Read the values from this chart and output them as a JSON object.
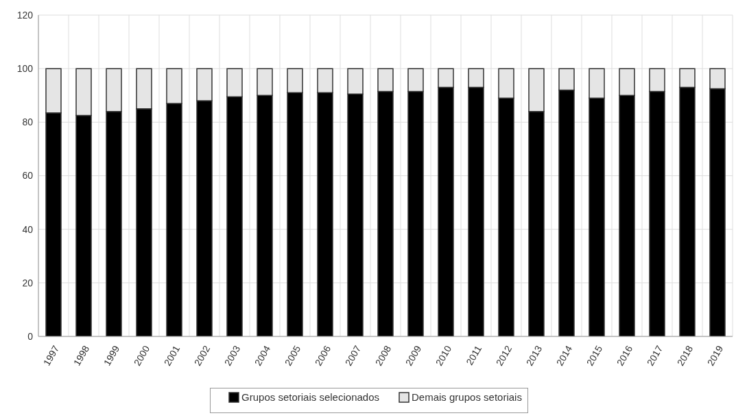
{
  "chart_data": {
    "type": "bar",
    "stacked": true,
    "categories": [
      "1997",
      "1998",
      "1999",
      "2000",
      "2001",
      "2002",
      "2003",
      "2004",
      "2005",
      "2006",
      "2007",
      "2008",
      "2009",
      "2010",
      "2011",
      "2012",
      "2013",
      "2014",
      "2015",
      "2016",
      "2017",
      "2018",
      "2019"
    ],
    "series": [
      {
        "name": "Grupos setoriais selecionados",
        "color": "#000000",
        "values": [
          83.5,
          82.5,
          84,
          85,
          87,
          88,
          89.5,
          90,
          91,
          91,
          90.5,
          91.5,
          91.5,
          93,
          93,
          89,
          84,
          92,
          89,
          90,
          91.5,
          93,
          92.5
        ]
      },
      {
        "name": "Demais grupos setoriais",
        "color": "#e5e5e5",
        "values": [
          16.5,
          17.5,
          16,
          15,
          13,
          12,
          10.5,
          10,
          9,
          9,
          9.5,
          8.5,
          8.5,
          7,
          7,
          11,
          16,
          8,
          11,
          10,
          8.5,
          7,
          7.5
        ]
      }
    ],
    "ylim": [
      0,
      120
    ],
    "yticks": [
      0,
      20,
      40,
      60,
      80,
      100,
      120
    ],
    "grid": true,
    "legend": "bottom"
  }
}
